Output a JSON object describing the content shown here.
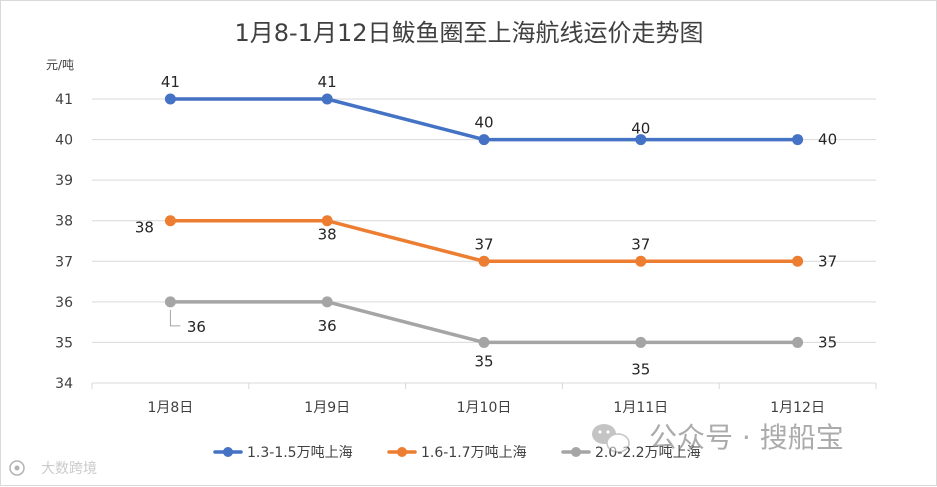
{
  "chart_data": {
    "type": "line",
    "title": "1月8-1月12日鲅鱼圈至上海航线运价走势图",
    "y_unit": "元/吨",
    "categories": [
      "1月8日",
      "1月9日",
      "1月10日",
      "1月11日",
      "1月12日"
    ],
    "ylim": [
      34,
      41
    ],
    "y_ticks": [
      34,
      35,
      36,
      37,
      38,
      39,
      40,
      41
    ],
    "grid": true,
    "legend_position": "bottom",
    "series": [
      {
        "name": "1.3-1.5万吨上海",
        "color": "#4472C4",
        "values": [
          41,
          41,
          40,
          40,
          40
        ]
      },
      {
        "name": "1.6-1.7万吨上海",
        "color": "#ED7D31",
        "values": [
          38,
          38,
          37,
          37,
          37
        ]
      },
      {
        "name": "2.0-2.2万吨上海",
        "color": "#A5A5A5",
        "values": [
          36,
          36,
          35,
          35,
          35
        ]
      }
    ]
  },
  "watermarks": {
    "wechat": "公众号 · 搜船宝",
    "bottom_left": "大数跨境"
  }
}
